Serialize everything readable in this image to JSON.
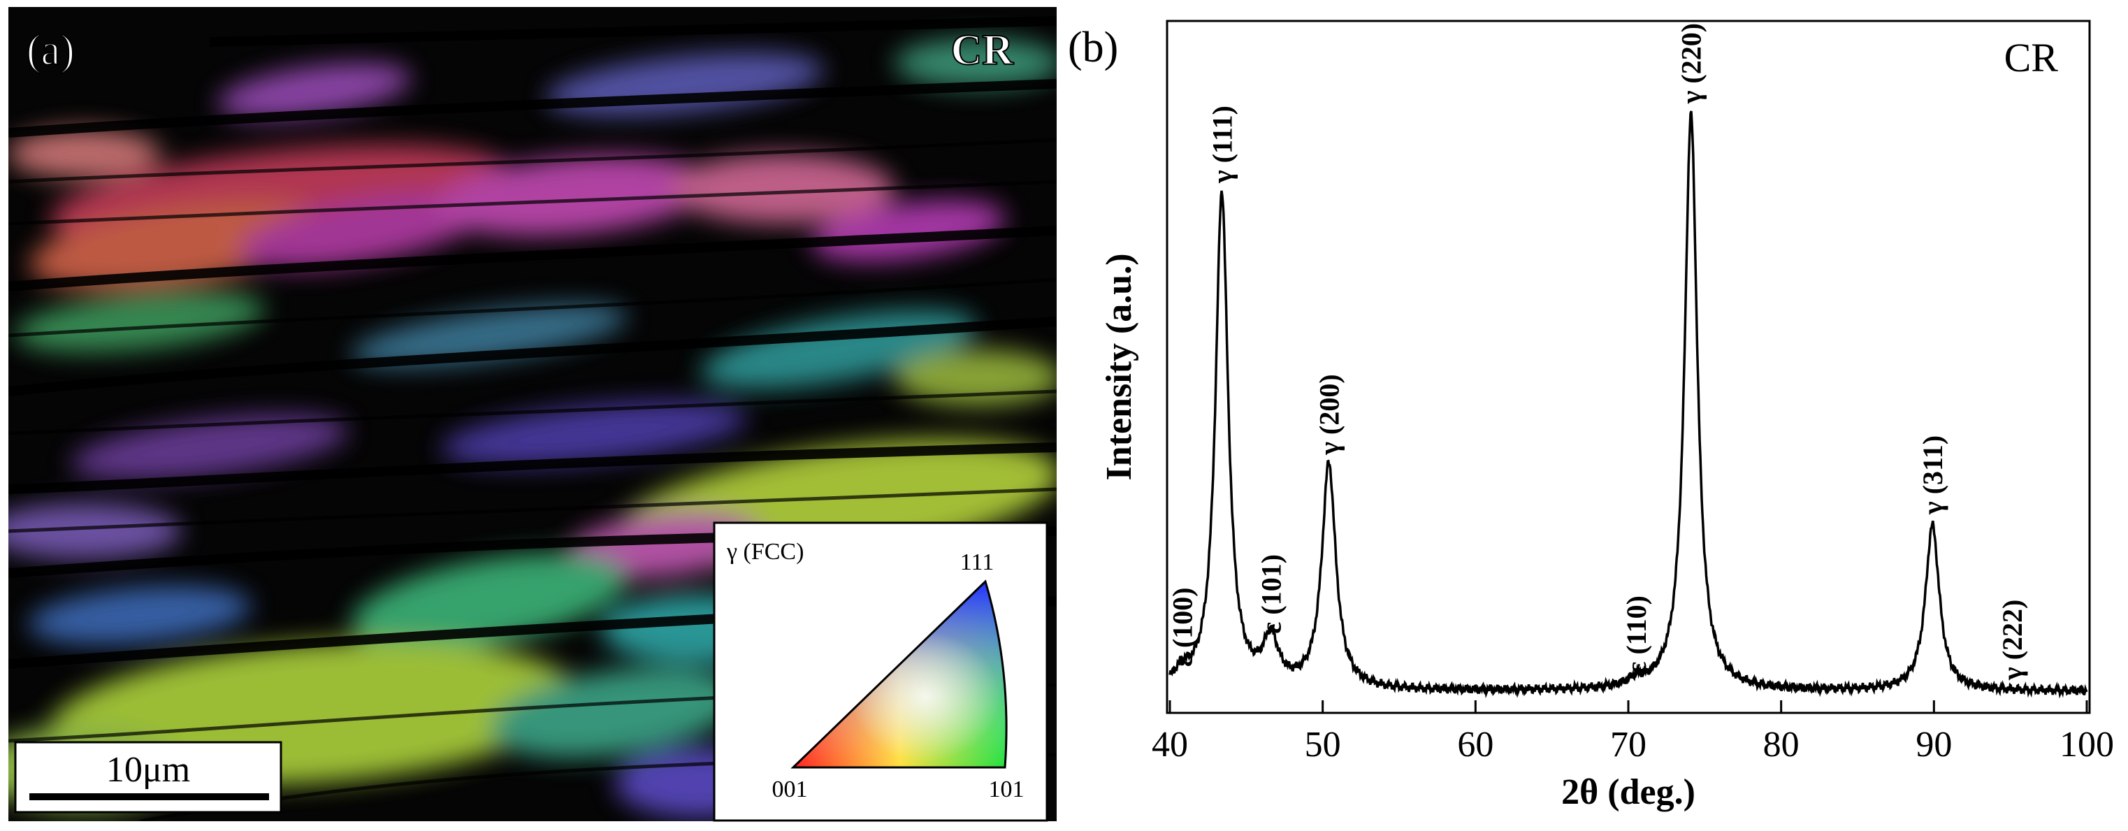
{
  "panel_a": {
    "label": "(a)",
    "corner_label": "CR",
    "scale_bar_label": "10μm",
    "legend": {
      "phase_label": "γ (FCC)",
      "vertex_top": "111",
      "vertex_left": "001",
      "vertex_right": "101"
    },
    "colors": {
      "black": "#000000",
      "green": "#b6e03c",
      "magenta": "#d048c8",
      "red": "#e05050",
      "cyan": "#40c8c0",
      "blue": "#5040d0",
      "yellow": "#e8e070"
    }
  },
  "panel_b": {
    "label": "(b)",
    "corner_label": "CR",
    "chart_data": {
      "type": "line",
      "title": "CR",
      "xlabel": "2θ (deg.)",
      "ylabel": "Intensity (a.u.)",
      "xlim": [
        40,
        100
      ],
      "ylim": [
        0,
        1.0
      ],
      "xticks": [
        40,
        50,
        60,
        70,
        80,
        90,
        100
      ],
      "series": [
        {
          "name": "CR",
          "baseline": 0.02,
          "peaks": [
            {
              "x": 40.8,
              "y": 0.04,
              "label": "ε (100)"
            },
            {
              "x": 43.4,
              "y": 0.77,
              "label": "γ (111)"
            },
            {
              "x": 46.6,
              "y": 0.09,
              "label": "ε (101)"
            },
            {
              "x": 50.4,
              "y": 0.36,
              "label": "γ (200)"
            },
            {
              "x": 70.5,
              "y": 0.03,
              "label": "ε (110)"
            },
            {
              "x": 74.1,
              "y": 0.89,
              "label": "γ (220)"
            },
            {
              "x": 89.9,
              "y": 0.27,
              "label": "γ (311)"
            },
            {
              "x": 95.1,
              "y": 0.02,
              "label": "γ (222)"
            }
          ]
        }
      ]
    }
  }
}
